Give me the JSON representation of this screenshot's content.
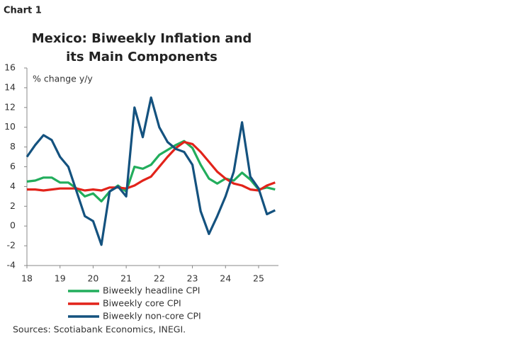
{
  "chart_data": {
    "type": "line",
    "label": "Chart 1",
    "title": [
      "Mexico: Biweekly Inflation and",
      "its Main Components"
    ],
    "y_label": "% change y/y",
    "source": "Sources: Scotiabank Economics, INEGI.",
    "x": [
      18,
      18.25,
      18.5,
      18.75,
      19,
      19.25,
      19.5,
      19.75,
      20,
      20.25,
      20.5,
      20.75,
      21,
      21.25,
      21.5,
      21.75,
      22,
      22.25,
      22.5,
      22.75,
      23,
      23.25,
      23.5,
      23.75,
      24,
      24.25,
      24.5,
      24.75,
      25,
      25.25,
      25.5
    ],
    "xlim": [
      18,
      25.6
    ],
    "xticks": [
      18,
      19,
      20,
      21,
      22,
      23,
      24,
      25
    ],
    "ylim": [
      -4,
      16
    ],
    "yticks": [
      -4,
      -2,
      0,
      2,
      4,
      6,
      8,
      10,
      12,
      14,
      16
    ],
    "series": [
      {
        "name": "Biweekly headline CPI",
        "color": "#22ad5c",
        "values": [
          4.5,
          4.6,
          4.9,
          4.9,
          4.4,
          4.4,
          3.8,
          3.0,
          3.3,
          2.5,
          3.5,
          4.1,
          3.5,
          6.0,
          5.8,
          6.2,
          7.2,
          7.7,
          8.2,
          8.6,
          7.9,
          6.2,
          4.8,
          4.3,
          4.8,
          4.6,
          5.4,
          4.7,
          3.7,
          3.9,
          3.7
        ]
      },
      {
        "name": "Biweekly core CPI",
        "color": "#e2231a",
        "values": [
          3.7,
          3.7,
          3.6,
          3.7,
          3.8,
          3.8,
          3.8,
          3.6,
          3.7,
          3.6,
          3.9,
          3.9,
          3.8,
          4.1,
          4.6,
          5.0,
          6.0,
          7.0,
          7.9,
          8.5,
          8.3,
          7.5,
          6.5,
          5.5,
          4.8,
          4.3,
          4.1,
          3.7,
          3.6,
          4.1,
          4.4
        ]
      },
      {
        "name": "Biweekly non-core CPI",
        "color": "#14527f",
        "values": [
          7.0,
          8.2,
          9.2,
          8.7,
          7.0,
          6.0,
          3.5,
          1.0,
          0.5,
          -1.9,
          3.5,
          4.0,
          3.0,
          12.0,
          9.0,
          13.0,
          10.0,
          8.5,
          7.8,
          7.5,
          6.2,
          1.5,
          -0.8,
          1.0,
          3.0,
          5.5,
          10.5,
          5.0,
          3.8,
          1.2,
          1.6
        ]
      }
    ]
  }
}
